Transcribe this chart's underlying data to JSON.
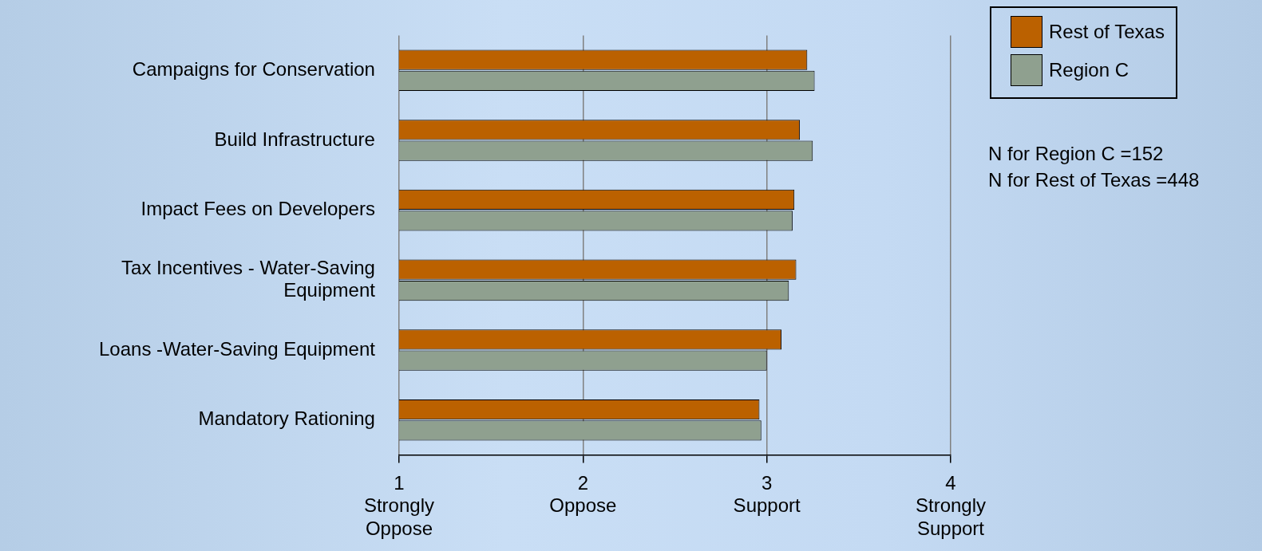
{
  "chart_data": {
    "type": "bar",
    "orientation": "horizontal",
    "categories": [
      "Campaigns for Conservation",
      "Build Infrastructure",
      "Impact Fees on Developers",
      "Tax Incentives - Water-Saving Equipment",
      "Loans -Water-Saving Equipment",
      "Mandatory Rationing"
    ],
    "series": [
      {
        "name": "Rest of Texas",
        "color": "#bb6100",
        "values": [
          3.22,
          3.18,
          3.15,
          3.16,
          3.08,
          2.96
        ]
      },
      {
        "name": "Region C",
        "color": "#8fa08f",
        "values": [
          3.26,
          3.25,
          3.14,
          3.12,
          3.0,
          2.97
        ]
      }
    ],
    "xlim": [
      1,
      4
    ],
    "xticks": [
      {
        "value": 1,
        "label": "1\nStrongly\nOppose"
      },
      {
        "value": 2,
        "label": "2\nOppose"
      },
      {
        "value": 3,
        "label": "3\nSupport"
      },
      {
        "value": 4,
        "label": "4\nStrongly\nSupport"
      }
    ],
    "grid": "x",
    "legend": "top right",
    "annotations": [
      "N for Region C =152",
      "N for Rest of Texas =448"
    ]
  }
}
